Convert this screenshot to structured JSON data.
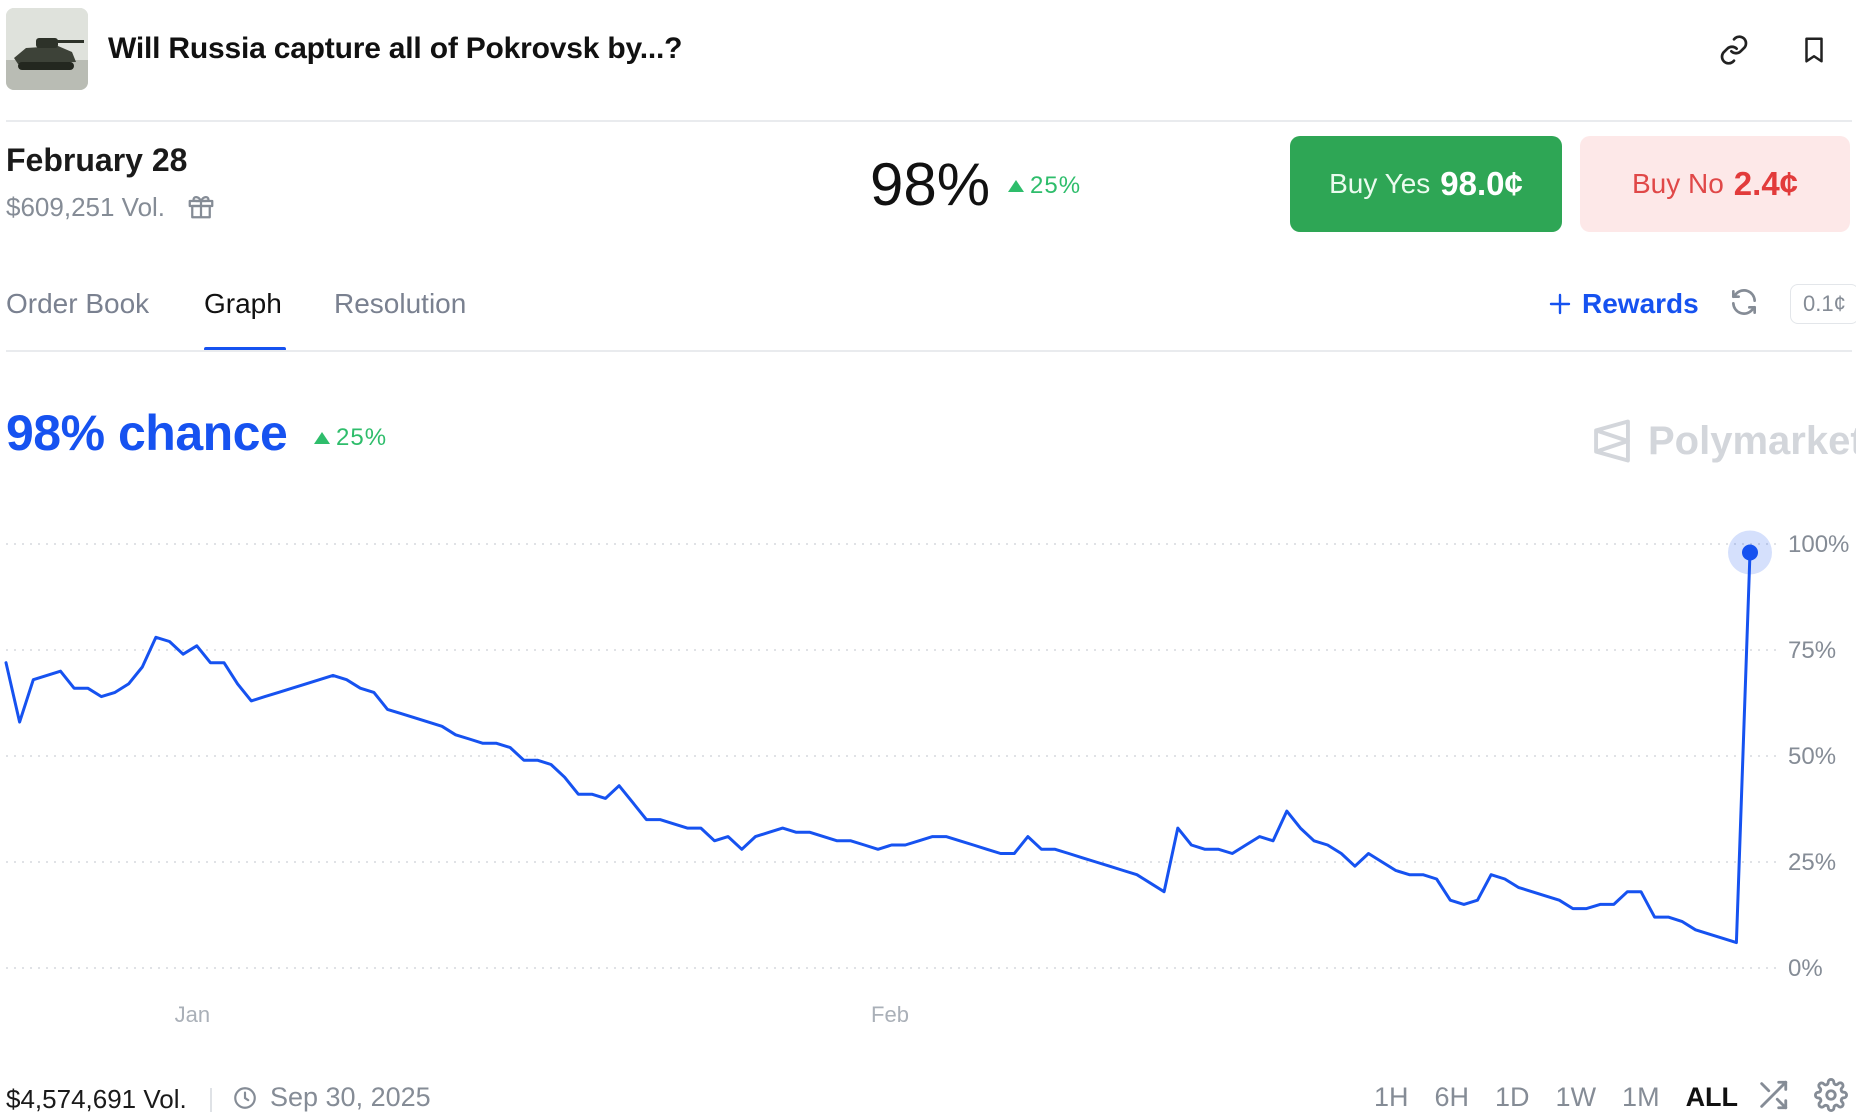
{
  "header": {
    "title": "Will Russia capture all of Pokrovsk by...?",
    "thumbnail_icon": "tank-photo"
  },
  "market": {
    "date": "February 28",
    "volume": "$609,251 Vol.",
    "probability": "98%",
    "delta": "25%",
    "buy_yes_label": "Buy Yes",
    "buy_yes_price": "98.0¢",
    "buy_no_label": "Buy No",
    "buy_no_price": "2.4¢"
  },
  "tabs": [
    {
      "label": "Order Book"
    },
    {
      "label": "Graph",
      "active": true
    },
    {
      "label": "Resolution"
    }
  ],
  "toolbar": {
    "rewards_label": "Rewards",
    "tick_size": "0.1¢"
  },
  "chance": {
    "label": "98% chance",
    "delta": "25%"
  },
  "watermark": "Polymarket",
  "colors": {
    "accent": "#1652f0",
    "up": "#2ebd6b",
    "buy_yes_bg": "#2ea655",
    "buy_no_bg": "#fde8e8",
    "buy_no_text": "#e23b3b"
  },
  "chart_data": {
    "type": "line",
    "y_ticks": [
      "100%",
      "75%",
      "50%",
      "25%",
      "0%"
    ],
    "ylim": [
      0,
      100
    ],
    "x_ticks": [
      "Jan",
      "Feb"
    ],
    "series": [
      {
        "values": [
          72,
          58,
          68,
          69,
          70,
          66,
          66,
          64,
          65,
          67,
          71,
          78,
          77,
          74,
          76,
          72,
          72,
          67,
          63,
          64,
          65,
          66,
          67,
          68,
          69,
          68,
          66,
          65,
          61,
          60,
          59,
          58,
          57,
          55,
          54,
          53,
          53,
          52,
          49,
          49,
          48,
          45,
          41,
          41,
          40,
          43,
          39,
          35,
          35,
          34,
          33,
          33,
          30,
          31,
          28,
          31,
          32,
          33,
          32,
          32,
          31,
          30,
          30,
          29,
          28,
          29,
          29,
          30,
          31,
          31,
          30,
          29,
          28,
          27,
          27,
          31,
          28,
          28,
          27,
          26,
          25,
          24,
          23,
          22,
          20,
          18,
          33,
          29,
          28,
          28,
          27,
          29,
          31,
          30,
          37,
          33,
          30,
          29,
          27,
          24,
          27,
          25,
          23,
          22,
          22,
          21,
          16,
          15,
          16,
          22,
          21,
          19,
          18,
          17,
          16,
          14,
          14,
          15,
          15,
          18,
          18,
          12,
          12,
          11,
          9,
          8,
          7,
          6,
          98
        ]
      }
    ]
  },
  "footer": {
    "volume": "$4,574,691 Vol.",
    "end_date": "Sep 30, 2025",
    "ranges": [
      "1H",
      "6H",
      "1D",
      "1W",
      "1M",
      "ALL"
    ],
    "active_range": "ALL"
  }
}
